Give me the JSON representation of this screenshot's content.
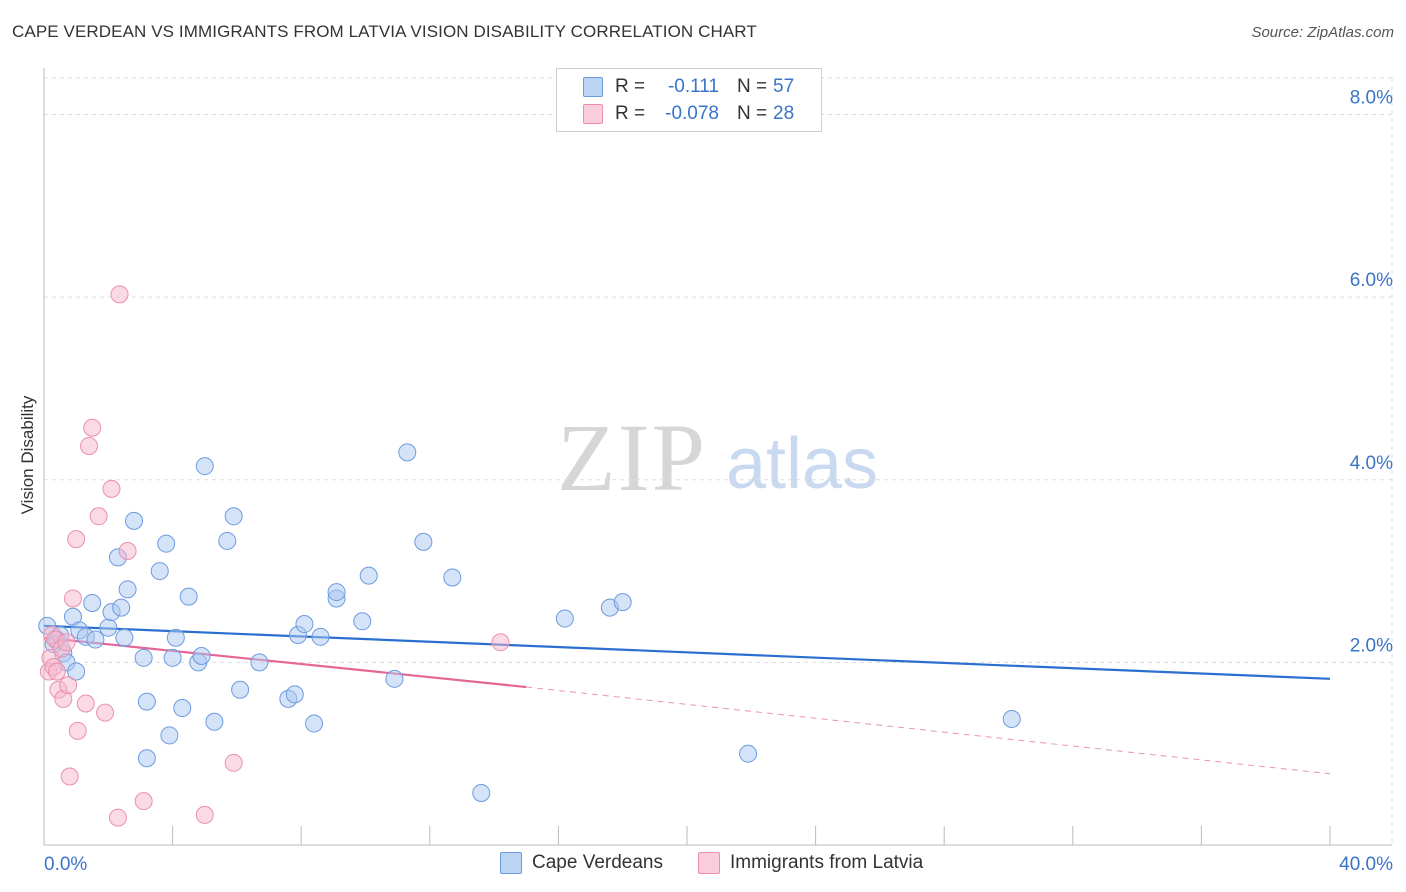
{
  "title": "CAPE VERDEAN VS IMMIGRANTS FROM LATVIA VISION DISABILITY CORRELATION CHART",
  "source": "Source: ZipAtlas.com",
  "watermark": {
    "zip": "ZIP",
    "atlas": "atlas"
  },
  "legend_top": {
    "rows": [
      {
        "r_label": "R =",
        "r_value": "-0.111",
        "n_label": "N =",
        "n_value": "57"
      },
      {
        "r_label": "R =",
        "r_value": "-0.078",
        "n_label": "N =",
        "n_value": "28"
      }
    ]
  },
  "legend_bottom": {
    "items": [
      {
        "label": "Cape Verdeans"
      },
      {
        "label": "Immigrants from Latvia"
      }
    ]
  },
  "colors": {
    "blue_fill": "#a9c8f0",
    "blue_stroke": "#6d9be0",
    "blue_line": "#2a6fcf",
    "pink_fill": "#f6b8cb",
    "pink_stroke": "#ec8fae",
    "pink_line": "#e46596",
    "axis_text": "#3a74c9",
    "grid": "#dddddd"
  },
  "chart_data": {
    "type": "scatter",
    "title": "CAPE VERDEAN VS IMMIGRANTS FROM LATVIA VISION DISABILITY CORRELATION CHART",
    "xlabel": "",
    "ylabel": "Vision Disability",
    "xlim": [
      0,
      40
    ],
    "ylim": [
      0,
      8.4
    ],
    "x_tick_labels": [
      {
        "value": 0,
        "label": "0.0%"
      },
      {
        "value": 40,
        "label": "40.0%"
      }
    ],
    "x_minor_ticks": [
      4,
      8,
      12,
      16,
      20,
      24,
      28,
      32,
      36,
      40
    ],
    "y_ticks": [
      {
        "value": 2,
        "label": "2.0%"
      },
      {
        "value": 4,
        "label": "4.0%"
      },
      {
        "value": 6,
        "label": "6.0%"
      },
      {
        "value": 8,
        "label": "8.0%"
      }
    ],
    "series": [
      {
        "name": "Cape Verdeans",
        "color_key": "blue",
        "points": [
          [
            0.1,
            2.4
          ],
          [
            0.3,
            2.2
          ],
          [
            0.4,
            2.25
          ],
          [
            0.5,
            2.3
          ],
          [
            0.6,
            2.1
          ],
          [
            0.7,
            2.0
          ],
          [
            0.9,
            2.5
          ],
          [
            1.0,
            1.9
          ],
          [
            1.1,
            2.35
          ],
          [
            1.3,
            2.28
          ],
          [
            1.5,
            2.65
          ],
          [
            1.6,
            2.25
          ],
          [
            2.0,
            2.38
          ],
          [
            2.1,
            2.55
          ],
          [
            2.3,
            3.15
          ],
          [
            2.4,
            2.6
          ],
          [
            2.5,
            2.27
          ],
          [
            2.6,
            2.8
          ],
          [
            2.8,
            3.55
          ],
          [
            3.1,
            2.05
          ],
          [
            3.2,
            1.57
          ],
          [
            3.2,
            0.95
          ],
          [
            3.6,
            3.0
          ],
          [
            3.8,
            3.3
          ],
          [
            3.9,
            1.2
          ],
          [
            4.0,
            2.05
          ],
          [
            4.1,
            2.27
          ],
          [
            4.3,
            1.5
          ],
          [
            4.5,
            2.72
          ],
          [
            4.8,
            2.0
          ],
          [
            4.9,
            2.07
          ],
          [
            5.0,
            4.15
          ],
          [
            5.3,
            1.35
          ],
          [
            5.7,
            3.33
          ],
          [
            5.9,
            3.6
          ],
          [
            6.1,
            1.7
          ],
          [
            6.7,
            2.0
          ],
          [
            7.6,
            1.6
          ],
          [
            7.8,
            1.65
          ],
          [
            7.9,
            2.3
          ],
          [
            8.1,
            2.42
          ],
          [
            8.4,
            1.33
          ],
          [
            8.6,
            2.28
          ],
          [
            9.1,
            2.7
          ],
          [
            9.1,
            2.77
          ],
          [
            9.9,
            2.45
          ],
          [
            10.1,
            2.95
          ],
          [
            10.9,
            1.82
          ],
          [
            11.3,
            4.3
          ],
          [
            11.8,
            3.32
          ],
          [
            12.7,
            2.93
          ],
          [
            13.6,
            0.57
          ],
          [
            16.2,
            2.48
          ],
          [
            17.6,
            2.6
          ],
          [
            18.0,
            2.66
          ],
          [
            21.9,
            1.0
          ],
          [
            30.1,
            1.38
          ]
        ],
        "trend": {
          "x0": 0,
          "y0": 2.4,
          "x1": 40,
          "y1": 1.82
        }
      },
      {
        "name": "Immigrants from Latvia",
        "color_key": "pink",
        "points": [
          [
            0.15,
            1.9
          ],
          [
            0.2,
            2.05
          ],
          [
            0.25,
            2.3
          ],
          [
            0.3,
            1.95
          ],
          [
            0.35,
            2.25
          ],
          [
            0.45,
            1.7
          ],
          [
            0.55,
            2.15
          ],
          [
            0.6,
            1.6
          ],
          [
            0.7,
            2.22
          ],
          [
            0.75,
            1.75
          ],
          [
            0.8,
            0.75
          ],
          [
            0.9,
            2.7
          ],
          [
            1.0,
            3.35
          ],
          [
            1.05,
            1.25
          ],
          [
            1.3,
            1.55
          ],
          [
            1.4,
            4.37
          ],
          [
            1.5,
            4.57
          ],
          [
            1.7,
            3.6
          ],
          [
            1.9,
            1.45
          ],
          [
            2.1,
            3.9
          ],
          [
            2.3,
            0.3
          ],
          [
            2.35,
            6.03
          ],
          [
            2.6,
            3.22
          ],
          [
            3.1,
            0.48
          ],
          [
            5.0,
            0.33
          ],
          [
            5.9,
            0.9
          ],
          [
            14.2,
            2.22
          ],
          [
            0.4,
            1.9
          ]
        ],
        "trend": {
          "x0": 0,
          "y0": 2.27,
          "x1": 15.0,
          "y1": 1.73
        },
        "trend_extension": {
          "x0": 15.0,
          "y0": 1.73,
          "x1": 40,
          "y1": 0.78
        }
      }
    ]
  }
}
